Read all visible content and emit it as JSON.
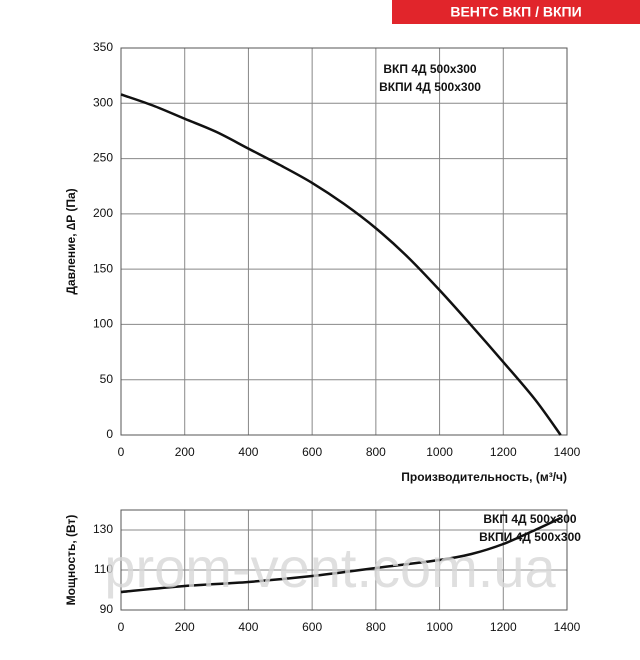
{
  "header": "ВЕНТС ВКП / ВКПИ",
  "watermark": "prom-vent.com.ua",
  "chart_data": [
    {
      "type": "line",
      "ylabel": "Давление, ∆P (Па)",
      "xlabel": "Производительность, (м³/ч)",
      "annotations": [
        "ВКП 4Д 500x300",
        "ВКПИ 4Д 500x300"
      ],
      "x": [
        0,
        100,
        200,
        300,
        400,
        500,
        600,
        700,
        800,
        900,
        1000,
        1100,
        1200,
        1300,
        1380
      ],
      "series": [
        {
          "color": "#111111",
          "values": [
            308,
            298,
            286,
            274,
            259,
            244,
            228,
            209,
            187,
            161,
            131,
            99,
            66,
            32,
            0
          ]
        }
      ],
      "xlim": [
        0,
        1400
      ],
      "xticks": [
        0,
        200,
        400,
        600,
        800,
        1000,
        1200,
        1400
      ],
      "ylim": [
        0,
        350
      ],
      "yticks": [
        0,
        50,
        100,
        150,
        200,
        250,
        300,
        350
      ],
      "grid": true
    },
    {
      "type": "line",
      "ylabel": "Мощность, (Вт)",
      "annotations": [
        "ВКП 4Д 500x300",
        "ВКПИ 4Д 500x300"
      ],
      "x": [
        0,
        200,
        400,
        600,
        800,
        1000,
        1100,
        1200,
        1300,
        1380
      ],
      "series": [
        {
          "color": "#111111",
          "values": [
            99,
            102,
            104,
            107,
            111,
            115,
            118,
            123,
            130,
            136
          ]
        }
      ],
      "xlim": [
        0,
        1400
      ],
      "xticks": [
        0,
        200,
        400,
        600,
        800,
        1000,
        1200,
        1400
      ],
      "ylim": [
        90,
        140
      ],
      "yticks": [
        90,
        110,
        130
      ],
      "grid": true
    }
  ]
}
